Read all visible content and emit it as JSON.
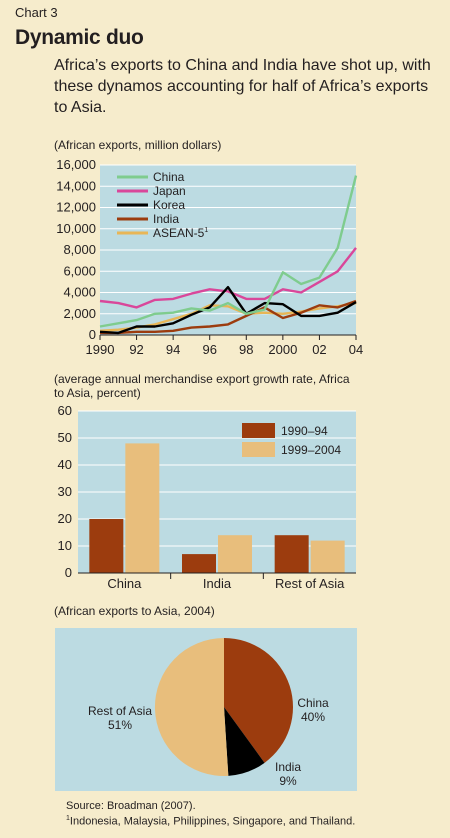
{
  "header": {
    "chart_number": "Chart 3",
    "title": "Dynamic duo",
    "subtitle": "Africa’s exports to China and India have shot up, with these dynamos accounting for half of Africa’s exports to Asia."
  },
  "footer": {
    "source": "Source: Broadman (2007).",
    "footnote_mark": "1",
    "footnote": "Indonesia, Malaysia, Philippines, Singapore, and Thailand."
  },
  "chart_data": [
    {
      "type": "line",
      "title": "(African exports, million dollars)",
      "x": [
        1990,
        1991,
        1992,
        1993,
        1994,
        1995,
        1996,
        1997,
        1998,
        1999,
        2000,
        2001,
        2002,
        2003,
        2004
      ],
      "xticks": [
        1990,
        1992,
        1994,
        1996,
        1998,
        2000,
        2002,
        2004
      ],
      "xtick_labels": [
        "1990",
        "92",
        "94",
        "96",
        "98",
        "2000",
        "02",
        "04"
      ],
      "ylim": [
        0,
        16000
      ],
      "yticks": [
        0,
        2000,
        4000,
        6000,
        8000,
        10000,
        12000,
        14000,
        16000
      ],
      "ytick_labels": [
        "0",
        "2,000",
        "4,000",
        "6,000",
        "8,000",
        "10,000",
        "12,000",
        "14,000",
        "16,000"
      ],
      "grid": true,
      "legend_position": "top-left",
      "series": [
        {
          "name": "China",
          "color": "#7fcc8e",
          "values": [
            800,
            1100,
            1400,
            2000,
            2100,
            2500,
            2300,
            3000,
            2000,
            2400,
            5900,
            4800,
            5400,
            8200,
            15000
          ]
        },
        {
          "name": "Japan",
          "color": "#d9479a",
          "values": [
            3200,
            3000,
            2600,
            3300,
            3400,
            3900,
            4300,
            4100,
            3400,
            3400,
            4300,
            4000,
            5000,
            6000,
            8200
          ]
        },
        {
          "name": "Korea",
          "color": "#000000",
          "values": [
            300,
            200,
            800,
            800,
            1100,
            1900,
            2600,
            4500,
            2000,
            3000,
            2900,
            1800,
            1800,
            2100,
            3100
          ]
        },
        {
          "name": "India",
          "color": "#9c3c0e",
          "values": [
            200,
            200,
            300,
            300,
            400,
            700,
            800,
            1000,
            1800,
            2600,
            1600,
            2100,
            2800,
            2600,
            3200
          ]
        },
        {
          "name": "ASEAN-5",
          "name_sup": "1",
          "color": "#e8b656",
          "values": [
            400,
            500,
            700,
            1000,
            1500,
            2000,
            2800,
            2700,
            2000,
            2100,
            2000,
            2200,
            2500,
            2700,
            3000
          ]
        }
      ]
    },
    {
      "type": "bar",
      "title": "(average annual merchandise export growth rate, Africa to Asia, percent)",
      "categories": [
        "China",
        "India",
        "Rest of Asia"
      ],
      "ylim": [
        0,
        60
      ],
      "yticks": [
        0,
        10,
        20,
        30,
        40,
        50,
        60
      ],
      "grid": true,
      "legend_position": "top-right",
      "series": [
        {
          "name": "1990–94",
          "color": "#9c3c0e",
          "values": [
            20,
            7,
            14
          ]
        },
        {
          "name": "1999–2004",
          "color": "#e8be7c",
          "values": [
            48,
            14,
            12
          ]
        }
      ]
    },
    {
      "type": "pie",
      "title": "(African exports to Asia, 2004)",
      "slices": [
        {
          "label": "China",
          "value": 40,
          "value_label": "40%",
          "color": "#9c3c0e"
        },
        {
          "label": "India",
          "value": 9,
          "value_label": "9%",
          "color": "#000000"
        },
        {
          "label": "Rest of Asia",
          "value": 51,
          "value_label": "51%",
          "color": "#e8be7c"
        }
      ]
    }
  ]
}
